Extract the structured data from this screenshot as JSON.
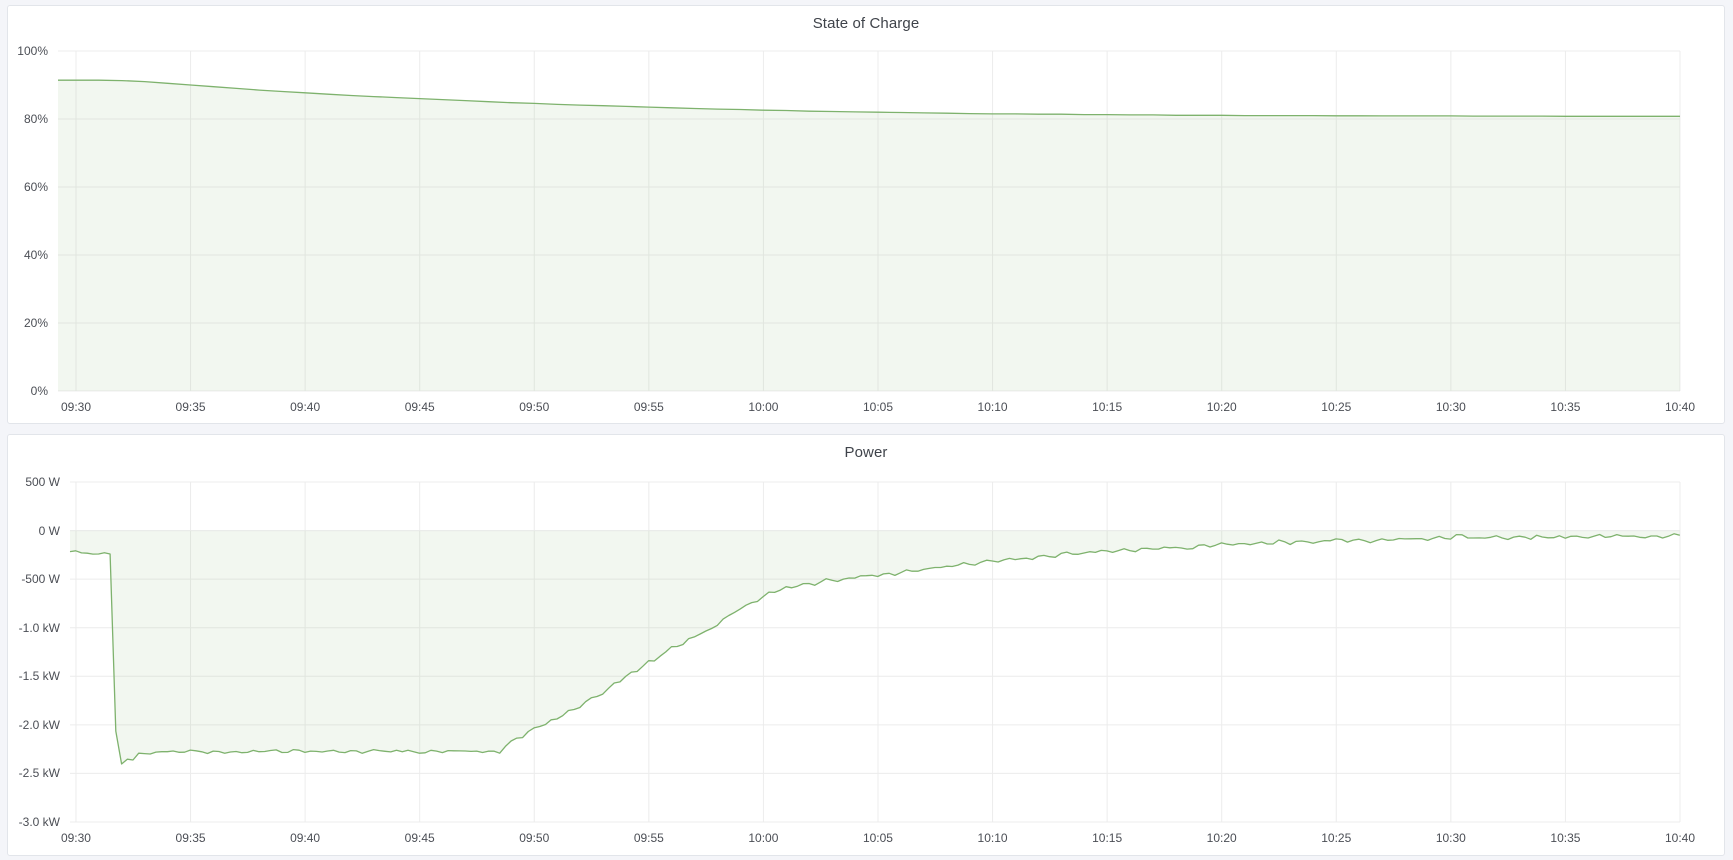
{
  "page": {
    "background": "#f4f5f9"
  },
  "colors": {
    "line": "#7eb26d",
    "fill": "rgba(126,178,109,0.10)",
    "panel_background": "#ffffff",
    "panel_border": "#e2e5ea",
    "tick_text": "#4b4e55",
    "title_text": "#3f434a"
  },
  "chart_data": [
    {
      "type": "area",
      "title": "State of Charge",
      "xlabel": "",
      "ylabel": "",
      "ylim": [
        0,
        100
      ],
      "xlim_minutes": [
        0,
        70
      ],
      "grid": true,
      "legend": "none",
      "baseline": 0,
      "y_ticks": [
        {
          "v": 100,
          "label": "100%"
        },
        {
          "v": 80,
          "label": "80%"
        },
        {
          "v": 60,
          "label": "60%"
        },
        {
          "v": 40,
          "label": "40%"
        },
        {
          "v": 20,
          "label": "20%"
        },
        {
          "v": 0,
          "label": "0%"
        }
      ],
      "x_ticks": [
        {
          "t": 0,
          "label": "09:30"
        },
        {
          "t": 5,
          "label": "09:35"
        },
        {
          "t": 10,
          "label": "09:40"
        },
        {
          "t": 15,
          "label": "09:45"
        },
        {
          "t": 20,
          "label": "09:50"
        },
        {
          "t": 25,
          "label": "09:55"
        },
        {
          "t": 30,
          "label": "10:00"
        },
        {
          "t": 35,
          "label": "10:05"
        },
        {
          "t": 40,
          "label": "10:10"
        },
        {
          "t": 45,
          "label": "10:15"
        },
        {
          "t": 50,
          "label": "10:20"
        },
        {
          "t": 55,
          "label": "10:25"
        },
        {
          "t": 60,
          "label": "10:30"
        },
        {
          "t": 65,
          "label": "10:35"
        },
        {
          "t": 70,
          "label": "10:40"
        }
      ],
      "x_minutes_step": 1,
      "values_percent": [
        91.4,
        91.4,
        91.3,
        91.0,
        90.5,
        90.0,
        89.5,
        89.0,
        88.5,
        88.1,
        87.7,
        87.3,
        86.9,
        86.6,
        86.3,
        86.0,
        85.7,
        85.4,
        85.1,
        84.8,
        84.6,
        84.3,
        84.1,
        83.9,
        83.7,
        83.5,
        83.3,
        83.1,
        82.9,
        82.8,
        82.6,
        82.5,
        82.3,
        82.2,
        82.1,
        82.0,
        81.9,
        81.8,
        81.7,
        81.6,
        81.5,
        81.5,
        81.4,
        81.4,
        81.3,
        81.3,
        81.2,
        81.2,
        81.1,
        81.1,
        81.1,
        81.0,
        81.0,
        81.0,
        81.0,
        80.95,
        80.95,
        80.9,
        80.9,
        80.9,
        80.9,
        80.85,
        80.85,
        80.85,
        80.85,
        80.8,
        80.8,
        80.8,
        80.8,
        80.8,
        80.8
      ]
    },
    {
      "type": "line",
      "title": "Power",
      "xlabel": "",
      "ylabel": "",
      "ylim": [
        -3000,
        500
      ],
      "xlim_minutes": [
        0,
        70
      ],
      "grid": true,
      "legend": "none",
      "baseline": 0,
      "unit": "W",
      "y_ticks": [
        {
          "v": 500,
          "label": "500 W"
        },
        {
          "v": 0,
          "label": "0 W"
        },
        {
          "v": -500,
          "label": "-500 W"
        },
        {
          "v": -1000,
          "label": "-1.0 kW"
        },
        {
          "v": -1500,
          "label": "-1.5 kW"
        },
        {
          "v": -2000,
          "label": "-2.0 kW"
        },
        {
          "v": -2500,
          "label": "-2.5 kW"
        },
        {
          "v": -3000,
          "label": "-3.0 kW"
        }
      ],
      "x_ticks": [
        {
          "t": 0,
          "label": "09:30"
        },
        {
          "t": 5,
          "label": "09:35"
        },
        {
          "t": 10,
          "label": "09:40"
        },
        {
          "t": 15,
          "label": "09:45"
        },
        {
          "t": 20,
          "label": "09:50"
        },
        {
          "t": 25,
          "label": "09:55"
        },
        {
          "t": 30,
          "label": "10:00"
        },
        {
          "t": 35,
          "label": "10:05"
        },
        {
          "t": 40,
          "label": "10:10"
        },
        {
          "t": 45,
          "label": "10:15"
        },
        {
          "t": 50,
          "label": "10:20"
        },
        {
          "t": 55,
          "label": "10:25"
        },
        {
          "t": 60,
          "label": "10:30"
        },
        {
          "t": 65,
          "label": "10:35"
        },
        {
          "t": 70,
          "label": "10:40"
        }
      ],
      "anchors_watts": [
        [
          0,
          -210
        ],
        [
          0.3,
          -245
        ],
        [
          0.6,
          -225
        ],
        [
          0.9,
          -255
        ],
        [
          1.2,
          -215
        ],
        [
          1.45,
          -240
        ],
        [
          1.6,
          -250
        ],
        [
          1.68,
          -1200
        ],
        [
          1.78,
          -2640
        ],
        [
          1.95,
          -2430
        ],
        [
          2.15,
          -2320
        ],
        [
          2.45,
          -2370
        ],
        [
          2.8,
          -2300
        ],
        [
          3.5,
          -2280
        ],
        [
          5,
          -2270
        ],
        [
          7,
          -2280
        ],
        [
          9,
          -2265
        ],
        [
          11,
          -2275
        ],
        [
          13,
          -2270
        ],
        [
          15,
          -2275
        ],
        [
          17,
          -2270
        ],
        [
          18.2,
          -2280
        ],
        [
          18.6,
          -2260
        ],
        [
          19.2,
          -2150
        ],
        [
          20,
          -2040
        ],
        [
          21,
          -1930
        ],
        [
          22,
          -1815
        ],
        [
          23,
          -1660
        ],
        [
          24,
          -1505
        ],
        [
          25,
          -1360
        ],
        [
          26,
          -1215
        ],
        [
          27,
          -1090
        ],
        [
          28,
          -970
        ],
        [
          29,
          -790
        ],
        [
          29.5,
          -760
        ],
        [
          30,
          -660
        ],
        [
          30.5,
          -640
        ],
        [
          31,
          -590
        ],
        [
          32,
          -545
        ],
        [
          33,
          -510
        ],
        [
          34,
          -480
        ],
        [
          35,
          -460
        ],
        [
          36,
          -430
        ],
        [
          37,
          -400
        ],
        [
          38,
          -370
        ],
        [
          39,
          -340
        ],
        [
          40,
          -310
        ],
        [
          41,
          -290
        ],
        [
          42,
          -270
        ],
        [
          43,
          -250
        ],
        [
          44,
          -230
        ],
        [
          45,
          -215
        ],
        [
          46,
          -200
        ],
        [
          47,
          -190
        ],
        [
          48,
          -180
        ],
        [
          49,
          -165
        ],
        [
          50,
          -150
        ],
        [
          51,
          -140
        ],
        [
          52,
          -130
        ],
        [
          53,
          -120
        ],
        [
          54,
          -110
        ],
        [
          55,
          -105
        ],
        [
          56,
          -100
        ],
        [
          57,
          -95
        ],
        [
          58,
          -90
        ],
        [
          59,
          -85
        ],
        [
          60,
          -70
        ],
        [
          60.3,
          -40
        ],
        [
          61,
          -75
        ],
        [
          62,
          -70
        ],
        [
          63,
          -65
        ],
        [
          64,
          -70
        ],
        [
          65,
          -60
        ],
        [
          66,
          -65
        ],
        [
          67,
          -60
        ],
        [
          68,
          -60
        ],
        [
          69,
          -55
        ],
        [
          70,
          -55
        ]
      ],
      "noise_segments": [
        {
          "from": -0.9,
          "to": 1.62,
          "amp": 14
        },
        {
          "from": 1.62,
          "to": 2.6,
          "amp": 25
        },
        {
          "from": 2.6,
          "to": 18.4,
          "amp": 20
        },
        {
          "from": 18.4,
          "to": 28,
          "amp": 28
        },
        {
          "from": 28,
          "to": 70.2,
          "amp": 26
        }
      ]
    }
  ]
}
